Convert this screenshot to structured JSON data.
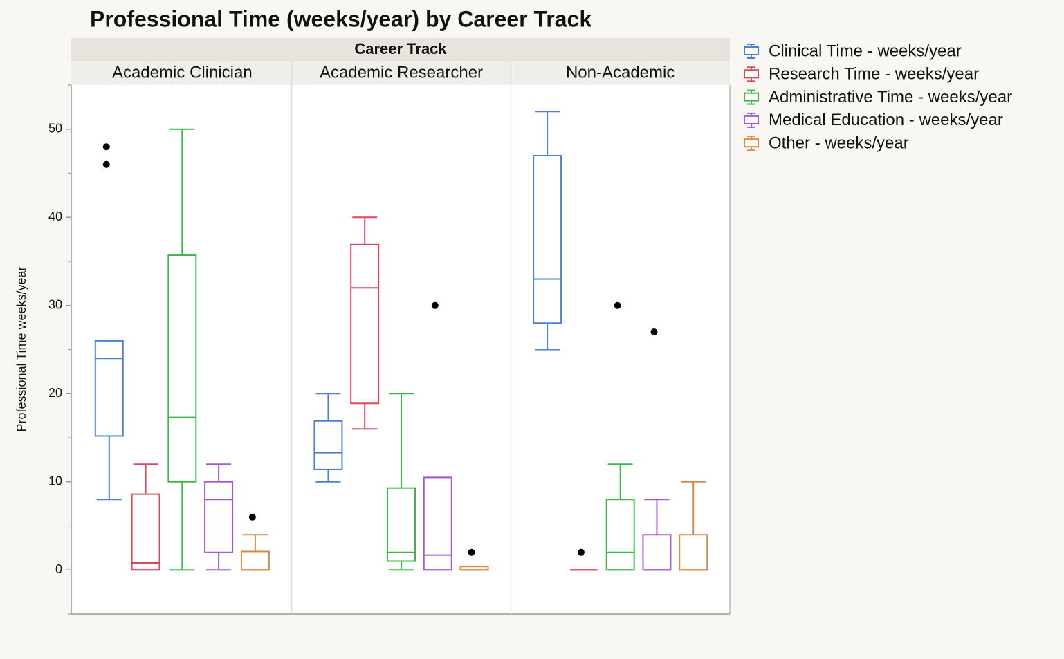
{
  "chart_data": {
    "type": "box",
    "title": "Professional Time (weeks/year) by Career Track",
    "facet_label": "Career Track",
    "y_label": "Professional Time weeks/year",
    "categories": [
      "Academic Clinician",
      "Academic Researcher",
      "Non-Academic"
    ],
    "ylim": [
      -5,
      55
    ],
    "yticks": [
      0,
      10,
      20,
      30,
      40,
      50
    ],
    "minor_yticks": [
      -5,
      5,
      15,
      25,
      35,
      45,
      55
    ],
    "series": [
      {
        "name": "Clinical Time - weeks/year",
        "color": "#4a7fd6",
        "values": [
          {
            "min": 8,
            "q1": 15.2,
            "median": 24,
            "q3": 26,
            "max": 26,
            "outliers": [
              48,
              46
            ]
          },
          {
            "min": 10,
            "q1": 11.4,
            "median": 13.3,
            "q3": 16.9,
            "max": 20
          },
          {
            "min": 25,
            "q1": 28,
            "median": 33,
            "q3": 47,
            "max": 52
          }
        ]
      },
      {
        "name": "Research Time - weeks/year",
        "color": "#d9495b",
        "values": [
          {
            "min": 0,
            "q1": 0,
            "median": 0.8,
            "q3": 8.6,
            "max": 12
          },
          {
            "min": 16,
            "q1": 18.9,
            "median": 32,
            "q3": 36.9,
            "max": 40
          },
          {
            "min": 0,
            "q1": 0,
            "median": 0,
            "q3": 0,
            "max": 0,
            "outliers": [
              2
            ]
          }
        ]
      },
      {
        "name": "Administrative Time - weeks/year",
        "color": "#3cb849",
        "values": [
          {
            "min": 0,
            "q1": 10,
            "median": 17.3,
            "q3": 35.7,
            "max": 50
          },
          {
            "min": 0,
            "q1": 1,
            "median": 2,
            "q3": 9.3,
            "max": 20
          },
          {
            "min": 0,
            "q1": 0,
            "median": 2,
            "q3": 8,
            "max": 12,
            "outliers": [
              30
            ]
          }
        ]
      },
      {
        "name": "Medical Education - weeks/year",
        "color": "#a35ad9",
        "values": [
          {
            "min": 0,
            "q1": 2,
            "median": 8,
            "q3": 10,
            "max": 12
          },
          {
            "min": 0,
            "q1": 0,
            "median": 1.7,
            "q3": 10.5,
            "max": 10.5,
            "outliers": [
              30
            ]
          },
          {
            "min": 0,
            "q1": 0,
            "median": 0,
            "q3": 4,
            "max": 8,
            "outliers": [
              27
            ]
          }
        ]
      },
      {
        "name": "Other - weeks/year",
        "color": "#d98c40",
        "values": [
          {
            "min": 0,
            "q1": 0,
            "median": 0,
            "q3": 2.1,
            "max": 4,
            "outliers": [
              6
            ]
          },
          {
            "min": 0,
            "q1": 0,
            "median": 0,
            "q3": 0.4,
            "max": 0.4,
            "outliers": [
              2
            ]
          },
          {
            "min": 0,
            "q1": 0,
            "median": 0,
            "q3": 4,
            "max": 10
          }
        ]
      }
    ]
  }
}
